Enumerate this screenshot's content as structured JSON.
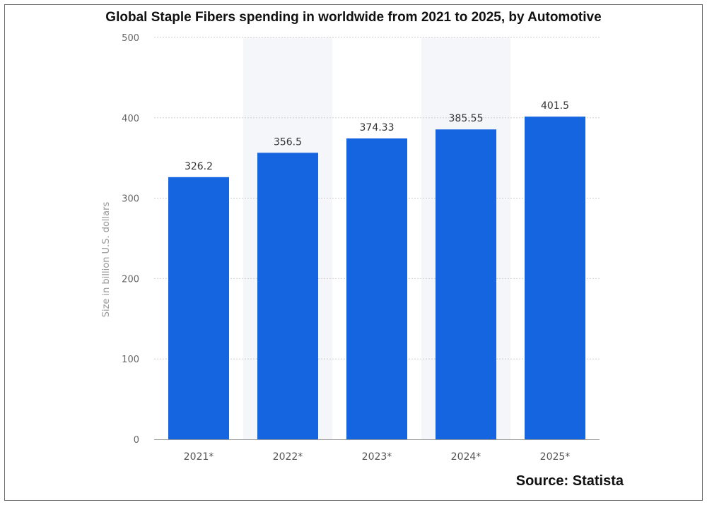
{
  "chart_data": {
    "type": "bar",
    "title": "Global Staple Fibers spending in worldwide from 2021 to 2025, by Automotive",
    "ylabel": "Size in billion U.S. dollars",
    "xlabel": "",
    "categories": [
      "2021*",
      "2022*",
      "2023*",
      "2024*",
      "2025*"
    ],
    "values": [
      326.2,
      356.5,
      374.33,
      385.55,
      401.5
    ],
    "value_labels": [
      "326.2",
      "356.5",
      "374.33",
      "385.55",
      "401.5"
    ],
    "ylim": [
      0,
      500
    ],
    "yticks": [
      0,
      100,
      200,
      300,
      400,
      500
    ],
    "grid": true,
    "legend": "none",
    "bar_color": "#1565e0",
    "source": "Source: Statista"
  }
}
